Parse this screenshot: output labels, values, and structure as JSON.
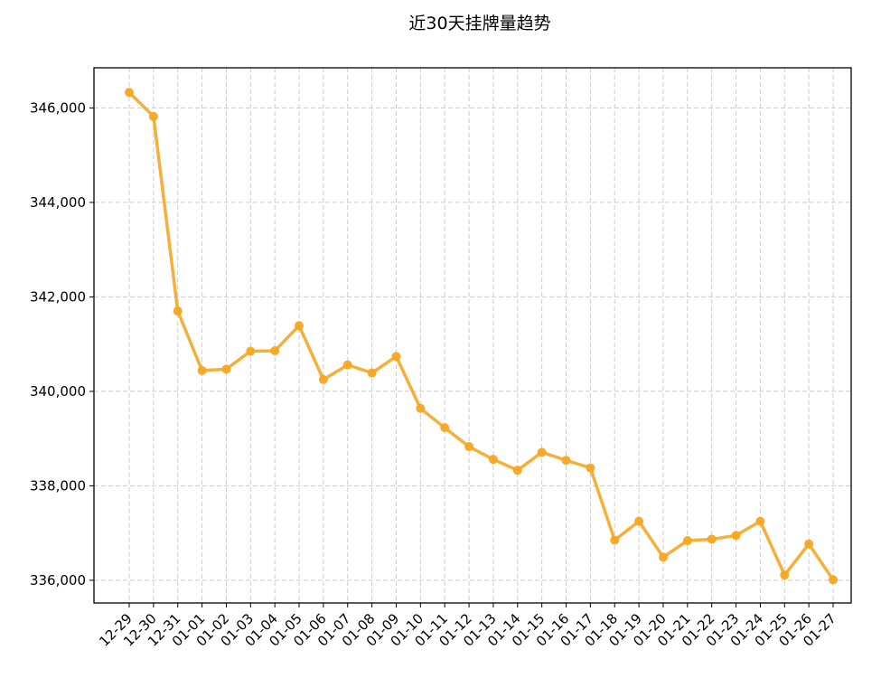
{
  "chart_data": {
    "type": "line",
    "title": "近30天挂牌量趋势",
    "xlabel": "",
    "ylabel": "",
    "x": [
      "12-29",
      "12-30",
      "12-31",
      "01-01",
      "01-02",
      "01-03",
      "01-04",
      "01-05",
      "01-06",
      "01-07",
      "01-08",
      "01-09",
      "01-10",
      "01-11",
      "01-12",
      "01-13",
      "01-14",
      "01-15",
      "01-16",
      "01-17",
      "01-18",
      "01-19",
      "01-20",
      "01-21",
      "01-22",
      "01-23",
      "01-24",
      "01-25",
      "01-26",
      "01-27"
    ],
    "series": [
      {
        "values": [
          346330,
          345820,
          341700,
          340440,
          340470,
          340850,
          340860,
          341390,
          340250,
          340560,
          340390,
          340740,
          339640,
          339230,
          338830,
          338560,
          338330,
          338710,
          338540,
          338380,
          336850,
          337250,
          336490,
          336840,
          336870,
          336950,
          337250,
          336110,
          336770,
          336010
        ]
      }
    ],
    "ylim": [
      335520,
      346850
    ],
    "yticks": [
      336000,
      338000,
      340000,
      342000,
      344000,
      346000
    ],
    "ytick_labels": [
      "336,000",
      "338,000",
      "340,000",
      "342,000",
      "344,000",
      "346,000"
    ],
    "grid": true,
    "legend": "none",
    "line_color": "#F5A623",
    "grid_color": "#CCCCCC"
  }
}
